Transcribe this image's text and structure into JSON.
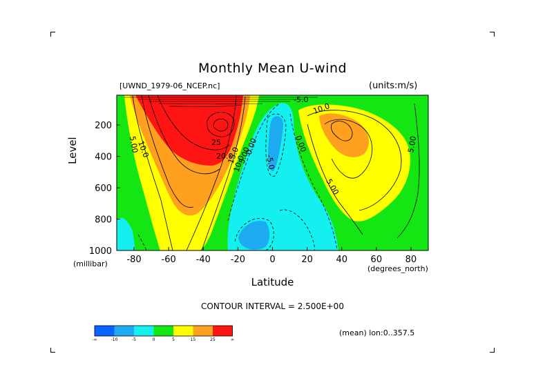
{
  "chart_data": {
    "type": "heatmap",
    "title": "Monthly Mean U-wind",
    "source_label": "[UWND_1979-06_NCEP.nc]",
    "units_label": "(units:m/s)",
    "xlabel": "Latitude",
    "x_unit": "(degrees_north)",
    "ylabel": "Level",
    "y_unit": "(millibar)",
    "x_ticks": [
      -80,
      -60,
      -40,
      -20,
      0,
      20,
      40,
      60,
      80
    ],
    "x_tick_labels": [
      "-80",
      "-60",
      "-40",
      "-20",
      "0",
      "20",
      "40",
      "60",
      "80"
    ],
    "y_ticks": [
      200,
      400,
      600,
      800,
      1000
    ],
    "y_tick_labels": [
      "200",
      "400",
      "600",
      "800",
      "1000"
    ],
    "xlim": [
      -90,
      90
    ],
    "ylim": [
      1000,
      10
    ],
    "contour_interval_text": "CONTOUR INTERVAL = 2.500E+00",
    "mean_text": "(mean) lon:0..357.5",
    "contour_labels": [
      "10.0",
      "5.00",
      "25",
      "20.0",
      "15.0",
      "10.0",
      "5.00",
      "0.00",
      "-5.0",
      "0.00",
      "10.0",
      "5.00",
      "5.00",
      "-5.0"
    ],
    "colorbar": {
      "bins": [
        {
          "color": "#0a64ff"
        },
        {
          "color": "#1eaaf0"
        },
        {
          "color": "#14f0f0"
        },
        {
          "color": "#14e614"
        },
        {
          "color": "#ffff00"
        },
        {
          "color": "#ffa01e"
        },
        {
          "color": "#ff1414"
        }
      ],
      "tick_labels": [
        "-∞",
        "-10",
        "-5",
        "0",
        "5",
        "15",
        "25",
        "∞"
      ]
    }
  }
}
